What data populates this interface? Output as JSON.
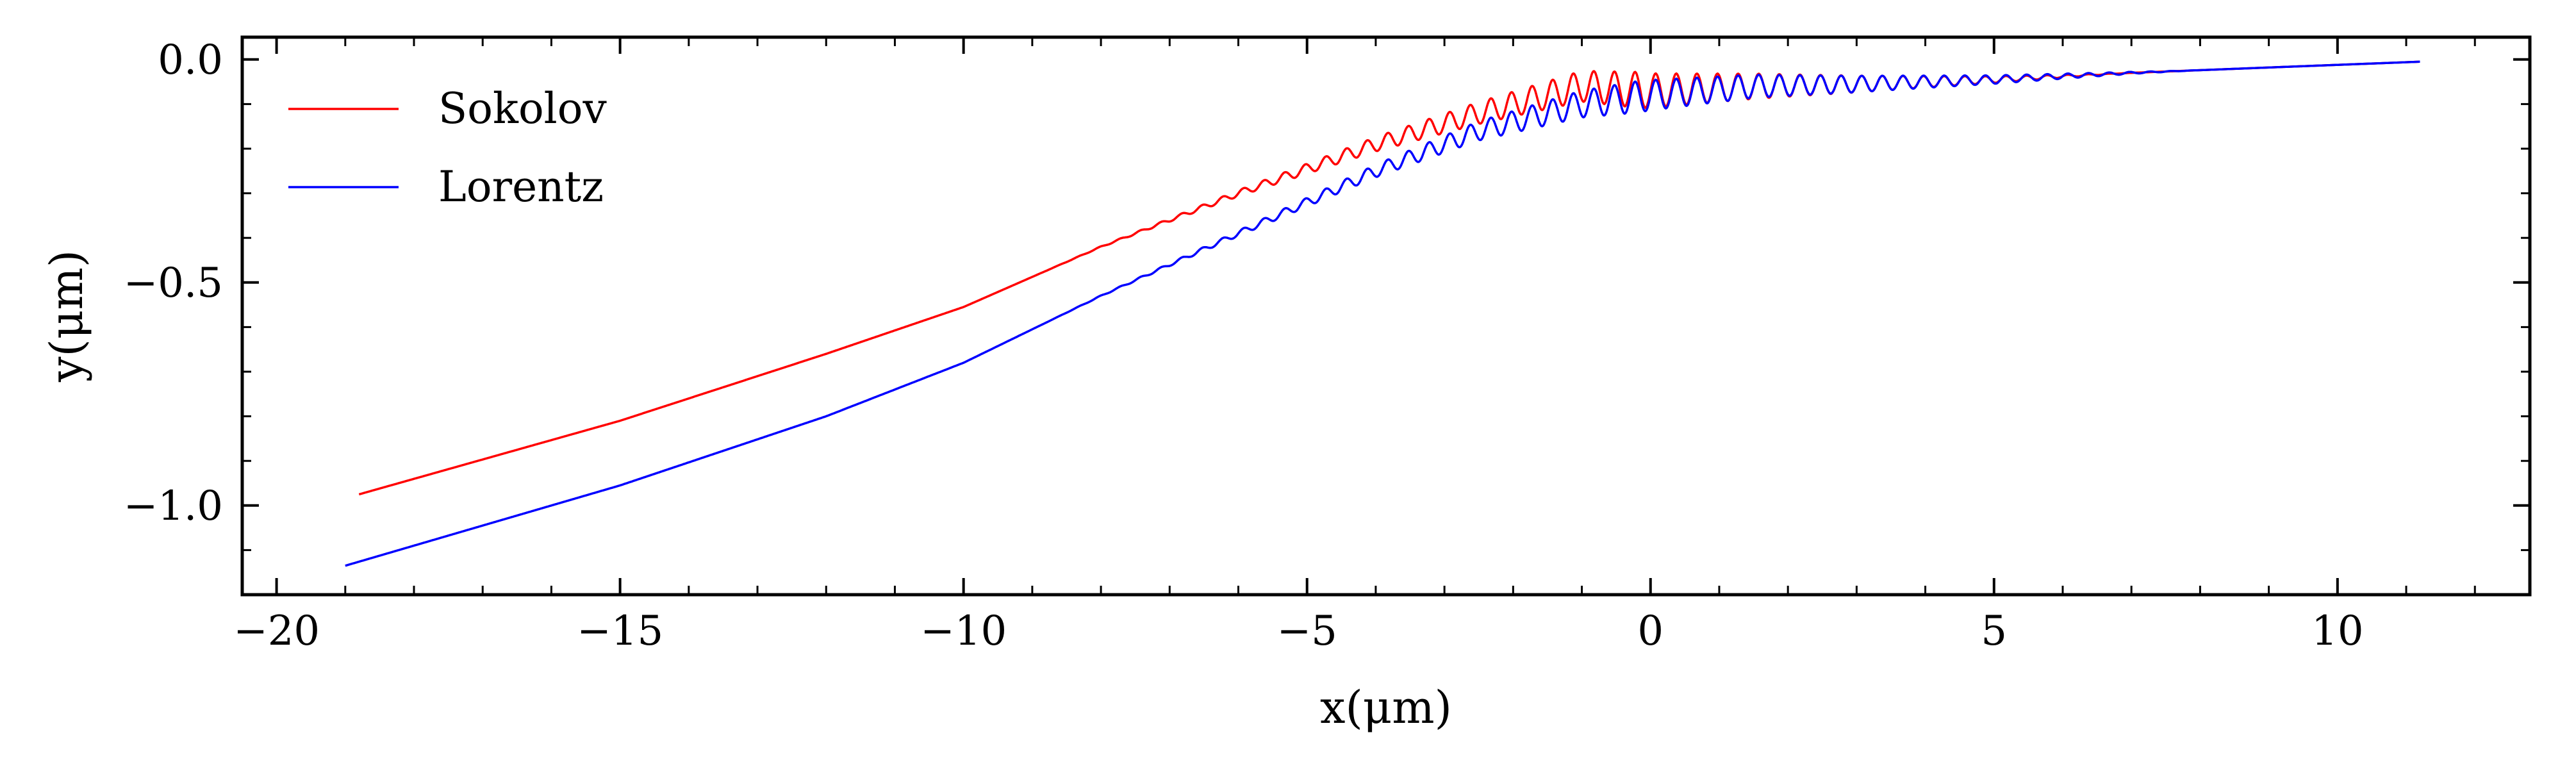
{
  "chart_data": {
    "type": "line",
    "xlabel": "x(μm)",
    "ylabel": "y(μm)",
    "xlim": [
      -20.5,
      12.8
    ],
    "ylim": [
      -1.2,
      0.05
    ],
    "x_ticks": [
      -20,
      -15,
      -10,
      -5,
      0,
      5,
      10
    ],
    "x_tick_labels": [
      "−20",
      "−15",
      "−10",
      "−5",
      "0",
      "5",
      "10"
    ],
    "y_ticks": [
      0.0,
      -0.5,
      -1.0
    ],
    "y_tick_labels": [
      "0.0",
      "−0.5",
      "−1.0"
    ],
    "grid": false,
    "legend_position": "top-left",
    "series": [
      {
        "name": "Sokolov",
        "color": "#ff0000",
        "points": [
          [
            -18.8,
            -0.975
          ],
          [
            -15.0,
            -0.81
          ],
          [
            -12.0,
            -0.66
          ],
          [
            -10.0,
            -0.555
          ],
          [
            -8.0,
            -0.42
          ],
          [
            -6.0,
            -0.3
          ],
          [
            -4.0,
            -0.19
          ],
          [
            -2.5,
            -0.12
          ],
          [
            -1.0,
            -0.06
          ],
          [
            0.0,
            -0.07
          ],
          [
            1.5,
            -0.06
          ],
          [
            3.0,
            -0.055
          ],
          [
            5.0,
            -0.045
          ],
          [
            7.0,
            -0.03
          ],
          [
            9.0,
            -0.018
          ],
          [
            11.2,
            -0.005
          ]
        ],
        "oscillation": {
          "start_x": -9.0,
          "end_x": 7.0,
          "wavelength": 0.3,
          "peak_amplitude": 0.04,
          "peak_x": -0.2
        }
      },
      {
        "name": "Lorentz",
        "color": "#0000ff",
        "points": [
          [
            -19.0,
            -1.135
          ],
          [
            -15.0,
            -0.955
          ],
          [
            -12.0,
            -0.8
          ],
          [
            -10.0,
            -0.68
          ],
          [
            -8.0,
            -0.53
          ],
          [
            -6.0,
            -0.39
          ],
          [
            -4.0,
            -0.25
          ],
          [
            -2.5,
            -0.16
          ],
          [
            -1.0,
            -0.1
          ],
          [
            0.0,
            -0.08
          ],
          [
            1.5,
            -0.06
          ],
          [
            3.0,
            -0.055
          ],
          [
            5.0,
            -0.045
          ],
          [
            7.0,
            -0.03
          ],
          [
            9.0,
            -0.018
          ],
          [
            11.2,
            -0.005
          ]
        ],
        "oscillation": {
          "start_x": -9.0,
          "end_x": 8.0,
          "wavelength": 0.3,
          "peak_amplitude": 0.035,
          "peak_x": -0.2
        }
      }
    ]
  }
}
